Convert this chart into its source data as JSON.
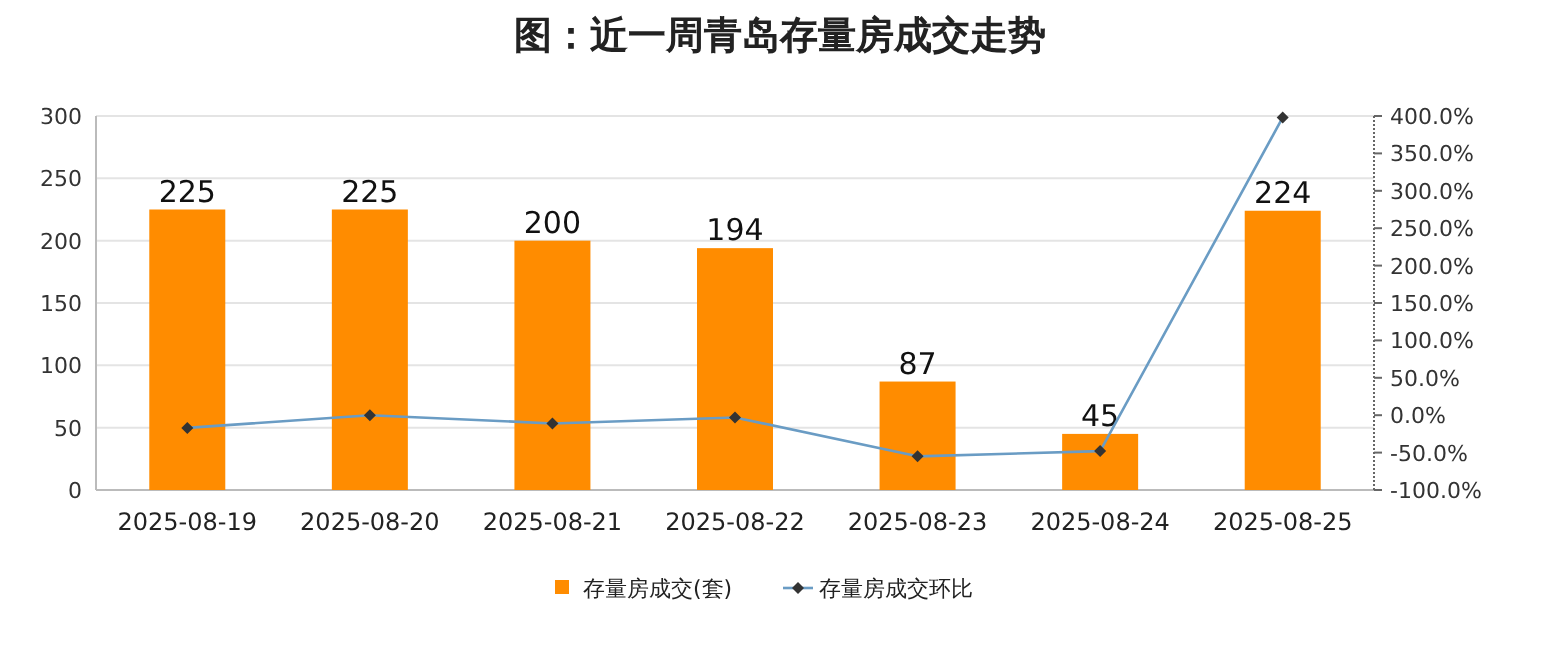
{
  "chart_data": {
    "type": "bar",
    "title": "图：近一周青岛存量房成交走势",
    "categories": [
      "2025-08-19",
      "2025-08-20",
      "2025-08-21",
      "2025-08-22",
      "2025-08-23",
      "2025-08-24",
      "2025-08-25"
    ],
    "series": [
      {
        "name": "存量房成交(套)",
        "color": "#ff8c00",
        "values": [
          225,
          225,
          200,
          194,
          87,
          45,
          224
        ],
        "value_labels": [
          "225",
          "225",
          "200",
          "194",
          "87",
          "45",
          "224"
        ]
      },
      {
        "name": "存量房成交环比",
        "type": "line",
        "axis": "y2",
        "color": "#6a9cc4",
        "marker": "diamond",
        "line_style": "solid",
        "values": [
          -17,
          0,
          -11,
          -3,
          -55,
          -48,
          398
        ]
      }
    ],
    "ylim": [
      0,
      300
    ],
    "yticks": [
      0,
      50,
      100,
      150,
      200,
      250,
      300
    ],
    "y2lim": [
      -100,
      400
    ],
    "y2ticks": [
      {
        "value": -100,
        "label": "-100.0%"
      },
      {
        "value": -50,
        "label": "-50.0%"
      },
      {
        "value": 0,
        "label": "0.0%"
      },
      {
        "value": 50,
        "label": "50.0%"
      },
      {
        "value": 100,
        "label": "100.0%"
      },
      {
        "value": 150,
        "label": "150.0%"
      },
      {
        "value": 200,
        "label": "200.0%"
      },
      {
        "value": 250,
        "label": "250.0%"
      },
      {
        "value": 300,
        "label": "300.0%"
      },
      {
        "value": 350,
        "label": "350.0%"
      },
      {
        "value": 400,
        "label": "400.0%"
      }
    ],
    "grid": "y",
    "legend": "bottom"
  }
}
